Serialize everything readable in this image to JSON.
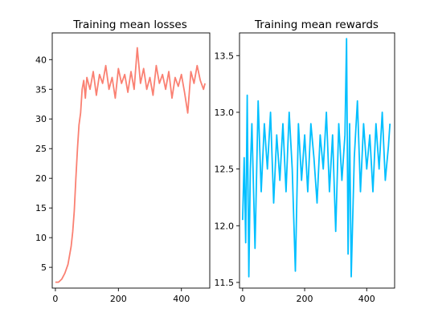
{
  "chart_data": [
    {
      "type": "line",
      "title": "Training mean losses",
      "xlabel": "",
      "ylabel": "",
      "xlim": [
        -10,
        490
      ],
      "ylim": [
        1.5,
        44.5
      ],
      "xticks": [
        0,
        200,
        400
      ],
      "yticks": [
        5,
        10,
        15,
        20,
        25,
        30,
        35,
        40
      ],
      "xtick_labels": [
        "0",
        "200",
        "400"
      ],
      "ytick_labels": [
        "5",
        "10",
        "15",
        "20",
        "25",
        "30",
        "35",
        "40"
      ],
      "grid": false,
      "color": "#fa8072",
      "series": [
        {
          "x": [
            0,
            10,
            20,
            30,
            40,
            50,
            55,
            60,
            65,
            70,
            75,
            80,
            85,
            90,
            95,
            100,
            110,
            120,
            130,
            140,
            150,
            160,
            170,
            180,
            190,
            200,
            210,
            220,
            230,
            240,
            250,
            260,
            270,
            280,
            290,
            300,
            310,
            320,
            330,
            340,
            350,
            360,
            370,
            380,
            390,
            400,
            410,
            420,
            430,
            440,
            450,
            460,
            470,
            475
          ],
          "y": [
            2.5,
            2.5,
            3.0,
            4.0,
            5.5,
            8.5,
            11.0,
            14.5,
            20.0,
            25.0,
            29.0,
            31.0,
            35.0,
            36.5,
            33.5,
            37.0,
            35.0,
            38.0,
            34.0,
            37.5,
            36.0,
            39.0,
            35.0,
            37.0,
            33.5,
            38.5,
            36.0,
            37.5,
            34.5,
            38.0,
            35.0,
            42.0,
            36.0,
            38.5,
            35.0,
            37.0,
            34.0,
            39.0,
            36.0,
            37.5,
            35.0,
            38.0,
            33.5,
            37.0,
            35.5,
            37.5,
            34.5,
            31.0,
            38.0,
            36.0,
            39.0,
            36.5,
            35.0,
            36.0
          ]
        }
      ]
    },
    {
      "type": "line",
      "title": "Training mean rewards",
      "xlabel": "",
      "ylabel": "",
      "xlim": [
        -10,
        490
      ],
      "ylim": [
        11.45,
        13.7
      ],
      "xticks": [
        0,
        200,
        400
      ],
      "yticks": [
        11.5,
        12.0,
        12.5,
        13.0,
        13.5
      ],
      "xtick_labels": [
        "0",
        "200",
        "400"
      ],
      "ytick_labels": [
        "11.5",
        "12.0",
        "12.5",
        "13.0",
        "13.5"
      ],
      "grid": false,
      "color": "#00bfff",
      "series": [
        {
          "x": [
            0,
            5,
            10,
            15,
            20,
            25,
            30,
            40,
            50,
            60,
            70,
            80,
            90,
            100,
            110,
            120,
            130,
            140,
            150,
            160,
            170,
            180,
            190,
            200,
            210,
            220,
            230,
            240,
            250,
            260,
            270,
            280,
            290,
            300,
            310,
            320,
            330,
            335,
            340,
            345,
            350,
            360,
            370,
            380,
            390,
            400,
            410,
            420,
            430,
            440,
            450,
            460,
            470,
            475
          ],
          "y": [
            12.05,
            12.6,
            11.85,
            13.15,
            11.55,
            12.5,
            12.9,
            11.8,
            13.1,
            12.3,
            12.9,
            12.5,
            13.0,
            12.2,
            12.8,
            12.4,
            12.9,
            12.3,
            13.0,
            12.5,
            11.6,
            12.9,
            12.4,
            12.8,
            12.3,
            12.9,
            12.6,
            12.2,
            12.8,
            12.5,
            13.0,
            12.3,
            12.8,
            11.95,
            12.9,
            12.4,
            12.8,
            13.65,
            11.75,
            12.9,
            11.55,
            12.6,
            13.1,
            12.3,
            12.9,
            12.5,
            12.8,
            12.3,
            12.9,
            12.5,
            13.0,
            12.4,
            12.7,
            12.9
          ]
        }
      ]
    }
  ]
}
